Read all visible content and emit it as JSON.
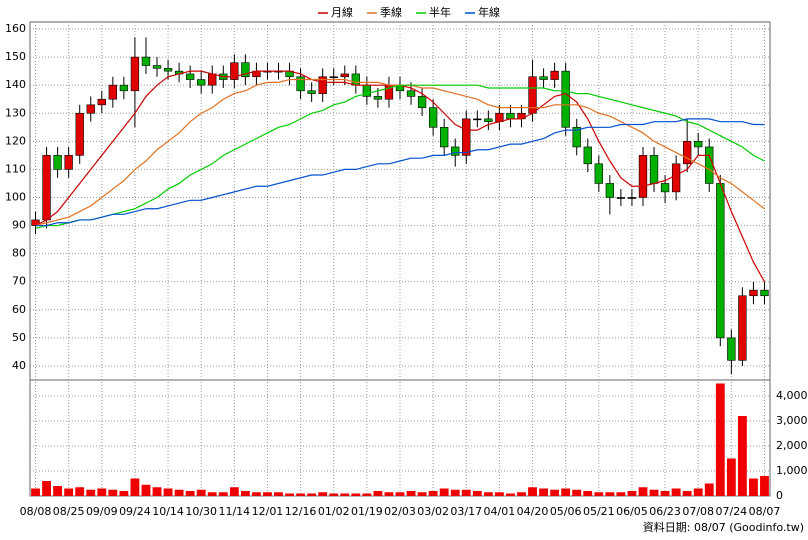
{
  "chart_data": [
    {
      "type": "candlestick",
      "categories": [
        "08/08",
        null,
        null,
        "08/25",
        null,
        null,
        "09/09",
        null,
        null,
        "09/24",
        null,
        null,
        "10/14",
        null,
        null,
        "10/30",
        null,
        null,
        "11/14",
        null,
        null,
        "12/01",
        null,
        null,
        "12/16",
        null,
        null,
        "01/02",
        null,
        null,
        "01/19",
        null,
        null,
        "02/03",
        null,
        null,
        "03/02",
        null,
        null,
        "03/17",
        null,
        null,
        "04/01",
        null,
        null,
        "04/20",
        null,
        null,
        "05/06",
        null,
        null,
        "05/21",
        null,
        null,
        "06/05",
        null,
        null,
        "06/23",
        null,
        null,
        "07/08",
        null,
        null,
        "07/24",
        null,
        null,
        "08/07"
      ],
      "open": [
        90,
        92,
        115,
        110,
        115,
        130,
        133,
        135,
        140,
        138,
        150,
        147,
        146,
        145,
        144,
        142,
        140,
        144,
        142,
        148,
        143,
        145,
        145,
        145,
        143,
        138,
        137,
        143,
        143,
        144,
        140,
        136,
        135,
        140,
        138,
        136,
        132,
        125,
        118,
        115,
        128,
        128,
        127,
        130,
        128,
        130,
        143,
        142,
        145,
        125,
        118,
        112,
        105,
        100,
        100,
        100,
        115,
        105,
        102,
        112,
        120,
        118,
        105,
        50,
        42,
        65,
        67
      ],
      "high": [
        95,
        118,
        118,
        118,
        133,
        136,
        138,
        143,
        143,
        157,
        157,
        150,
        149,
        148,
        147,
        145,
        147,
        147,
        151,
        151,
        148,
        148,
        148,
        148,
        146,
        141,
        146,
        146,
        147,
        147,
        143,
        139,
        143,
        143,
        141,
        139,
        135,
        128,
        121,
        131,
        131,
        131,
        133,
        133,
        133,
        149,
        146,
        148,
        148,
        128,
        121,
        115,
        108,
        103,
        103,
        118,
        118,
        108,
        115,
        128,
        123,
        121,
        108,
        53,
        68,
        70,
        70
      ],
      "low": [
        87,
        89,
        107,
        107,
        112,
        127,
        130,
        132,
        135,
        125,
        144,
        143,
        142,
        141,
        139,
        137,
        137,
        139,
        139,
        140,
        140,
        142,
        142,
        140,
        135,
        134,
        134,
        140,
        140,
        137,
        133,
        132,
        132,
        135,
        133,
        129,
        122,
        115,
        111,
        112,
        125,
        124,
        124,
        125,
        125,
        127,
        139,
        139,
        122,
        115,
        109,
        102,
        94,
        97,
        97,
        97,
        102,
        98,
        99,
        109,
        115,
        102,
        47,
        37,
        40,
        62,
        62
      ],
      "close": [
        92,
        115,
        110,
        115,
        130,
        133,
        135,
        140,
        138,
        150,
        147,
        146,
        145,
        144,
        142,
        140,
        144,
        142,
        148,
        143,
        145,
        145,
        145,
        143,
        138,
        137,
        143,
        143,
        144,
        140,
        136,
        135,
        140,
        138,
        136,
        132,
        125,
        118,
        115,
        128,
        128,
        127,
        130,
        128,
        130,
        143,
        142,
        145,
        125,
        118,
        112,
        105,
        100,
        100,
        100,
        115,
        105,
        102,
        112,
        120,
        118,
        105,
        50,
        42,
        65,
        67,
        65
      ],
      "up_color": "#e00000",
      "down_color": "#00b000",
      "series": [
        {
          "name": "月線",
          "color": "#cc0000",
          "values": [
            90,
            92,
            95,
            100,
            105,
            110,
            115,
            120,
            125,
            130,
            136,
            140,
            143,
            144,
            145,
            145,
            144,
            143,
            143,
            144,
            145,
            145,
            145,
            145,
            144,
            142,
            141,
            141,
            141,
            140,
            140,
            140,
            140,
            140,
            139,
            137,
            134,
            130,
            126,
            124,
            124,
            126,
            127,
            128,
            128,
            130,
            133,
            136,
            137,
            134,
            128,
            120,
            113,
            107,
            104,
            104,
            105,
            106,
            108,
            110,
            115,
            115,
            105,
            95,
            86,
            77,
            70
          ]
        },
        {
          "name": "季線",
          "color": "#e07020",
          "values": [
            90,
            91,
            92,
            93,
            95,
            97,
            100,
            103,
            106,
            110,
            113,
            117,
            120,
            123,
            127,
            130,
            132,
            135,
            137,
            138,
            140,
            141,
            141,
            142,
            142,
            142,
            142,
            142,
            142,
            141,
            141,
            141,
            140,
            140,
            140,
            139,
            139,
            138,
            137,
            136,
            135,
            133,
            132,
            132,
            132,
            132,
            132,
            133,
            133,
            133,
            132,
            130,
            129,
            127,
            125,
            123,
            120,
            118,
            116,
            114,
            112,
            110,
            107,
            105,
            102,
            99,
            96
          ]
        },
        {
          "name": "半年",
          "color": "#00cc00",
          "values": [
            89,
            90,
            90,
            91,
            92,
            92,
            93,
            94,
            95,
            96,
            98,
            100,
            103,
            105,
            108,
            110,
            112,
            115,
            117,
            119,
            121,
            123,
            125,
            126,
            128,
            130,
            131,
            133,
            134,
            136,
            137,
            138,
            139,
            140,
            140,
            140,
            140,
            140,
            140,
            140,
            140,
            139,
            139,
            139,
            139,
            139,
            139,
            138,
            138,
            137,
            137,
            136,
            135,
            134,
            133,
            132,
            131,
            130,
            129,
            127,
            126,
            124,
            122,
            120,
            118,
            115,
            113
          ]
        },
        {
          "name": "年線",
          "color": "#0050d0",
          "values": [
            90,
            90,
            91,
            91,
            92,
            92,
            93,
            94,
            94,
            95,
            96,
            96,
            97,
            98,
            99,
            99,
            100,
            101,
            102,
            103,
            104,
            104,
            105,
            106,
            107,
            108,
            108,
            109,
            110,
            110,
            111,
            112,
            112,
            113,
            114,
            114,
            115,
            115,
            116,
            116,
            117,
            117,
            118,
            119,
            119,
            120,
            121,
            123,
            124,
            124,
            125,
            125,
            125,
            126,
            126,
            126,
            127,
            127,
            127,
            128,
            128,
            128,
            127,
            127,
            127,
            126,
            126
          ]
        }
      ],
      "ylim": [
        35,
        162.5
      ],
      "yticks": [
        40,
        50,
        60,
        70,
        80,
        90,
        100,
        110,
        120,
        130,
        140,
        150,
        160
      ],
      "grid": true,
      "legend": "top"
    },
    {
      "type": "bar",
      "color": "#ee0000",
      "values": [
        300,
        600,
        400,
        300,
        350,
        250,
        300,
        250,
        200,
        700,
        450,
        350,
        300,
        250,
        200,
        250,
        150,
        150,
        350,
        200,
        150,
        150,
        150,
        100,
        100,
        100,
        150,
        100,
        100,
        100,
        100,
        200,
        150,
        150,
        200,
        150,
        200,
        300,
        250,
        250,
        200,
        150,
        150,
        100,
        150,
        350,
        300,
        250,
        300,
        250,
        200,
        150,
        150,
        150,
        200,
        350,
        250,
        200,
        300,
        200,
        300,
        500,
        4500,
        1500,
        3200,
        700,
        800
      ],
      "ylim": [
        0,
        4640
      ],
      "yticks": [
        0,
        {
          "value": 1000,
          "label": "1,000"
        },
        {
          "value": 2000,
          "label": "2,000"
        },
        {
          "value": 3000,
          "label": "3,000"
        },
        {
          "value": 4000,
          "label": "4,000"
        }
      ],
      "grid": true
    }
  ],
  "footer": "資料日期: 08/07 (Goodinfo.tw)"
}
